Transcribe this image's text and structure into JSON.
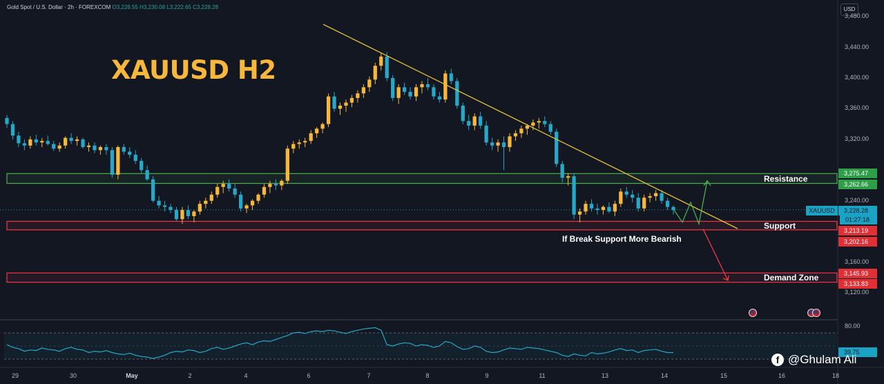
{
  "header": {
    "symbol": "Gold Spot / U.S. Dollar · 2h · FOREXCOM",
    "open": "O3,228.55",
    "high": "H3,230.08",
    "low": "L3,222.65",
    "close": "C3,228.28"
  },
  "title": "XAUUSD H2",
  "currency": "USD",
  "watermark": "@Ghulam Ali",
  "annotation": "If Break Support More Bearish",
  "zones": {
    "resistance": {
      "label": "Resistance",
      "top": 3275.47,
      "bottom": 3262.66,
      "top_label": "3,275.47",
      "bottom_label": "3,262.66",
      "color": "#4caf50"
    },
    "support": {
      "label": "Support",
      "top": 3213.19,
      "bottom": 3202.16,
      "top_label": "3,213.19",
      "bottom_label": "3,202.16",
      "color": "#f23645"
    },
    "demand": {
      "label": "Demand Zone",
      "top": 3145.93,
      "bottom": 3133.83,
      "top_label": "3,145.93",
      "bottom_label": "3,133.83",
      "color": "#f23645"
    }
  },
  "price_tag": {
    "symbol": "XAUUSD",
    "price": "3,228.28",
    "timer": "01:27:18"
  },
  "rsi": {
    "level_label": "80.00",
    "value_label": "39.75",
    "value": 39.75
  },
  "chart_data": {
    "type": "candlestick",
    "yaxis": {
      "min": 3100,
      "max": 3480,
      "ticks": [
        "3,120.00",
        "3,160.00",
        "3,200.00",
        "3,240.00",
        "3,280.00",
        "3,320.00",
        "3,360.00",
        "3,400.00",
        "3,440.00",
        "3,480.00"
      ]
    },
    "xaxis": {
      "ticks": [
        "29",
        "30",
        "May",
        "2",
        "4",
        "6",
        "7",
        "8",
        "9",
        "11",
        "13",
        "14",
        "15",
        "16",
        "18"
      ],
      "bold": [
        "May"
      ]
    },
    "colors": {
      "up": "#f6b73c",
      "down": "#26a8c9",
      "trendline": "#e6c23a",
      "rsi": "#26a8c9"
    },
    "candles": [
      [
        3348,
        3352,
        3335,
        3340
      ],
      [
        3340,
        3344,
        3320,
        3325
      ],
      [
        3325,
        3330,
        3310,
        3315
      ],
      [
        3315,
        3320,
        3306,
        3312
      ],
      [
        3312,
        3324,
        3308,
        3320
      ],
      [
        3320,
        3326,
        3312,
        3316
      ],
      [
        3316,
        3322,
        3310,
        3318
      ],
      [
        3318,
        3325,
        3312,
        3314
      ],
      [
        3314,
        3318,
        3305,
        3308
      ],
      [
        3308,
        3316,
        3304,
        3312
      ],
      [
        3312,
        3324,
        3308,
        3322
      ],
      [
        3322,
        3328,
        3314,
        3318
      ],
      [
        3318,
        3324,
        3312,
        3320
      ],
      [
        3320,
        3322,
        3308,
        3310
      ],
      [
        3310,
        3316,
        3304,
        3312
      ],
      [
        3312,
        3316,
        3302,
        3306
      ],
      [
        3306,
        3312,
        3300,
        3310
      ],
      [
        3310,
        3314,
        3300,
        3306
      ],
      [
        3306,
        3310,
        3270,
        3274
      ],
      [
        3274,
        3312,
        3268,
        3310
      ],
      [
        3310,
        3314,
        3300,
        3304
      ],
      [
        3304,
        3310,
        3296,
        3300
      ],
      [
        3300,
        3306,
        3288,
        3292
      ],
      [
        3292,
        3296,
        3276,
        3280
      ],
      [
        3280,
        3286,
        3266,
        3268
      ],
      [
        3268,
        3272,
        3238,
        3240
      ],
      [
        3240,
        3246,
        3230,
        3234
      ],
      [
        3234,
        3240,
        3226,
        3232
      ],
      [
        3232,
        3236,
        3224,
        3228
      ],
      [
        3228,
        3232,
        3214,
        3216
      ],
      [
        3216,
        3232,
        3210,
        3228
      ],
      [
        3228,
        3234,
        3216,
        3220
      ],
      [
        3220,
        3228,
        3212,
        3226
      ],
      [
        3226,
        3240,
        3222,
        3236
      ],
      [
        3236,
        3244,
        3230,
        3240
      ],
      [
        3240,
        3252,
        3236,
        3248
      ],
      [
        3248,
        3262,
        3244,
        3258
      ],
      [
        3258,
        3266,
        3250,
        3262
      ],
      [
        3262,
        3268,
        3252,
        3256
      ],
      [
        3256,
        3262,
        3244,
        3248
      ],
      [
        3248,
        3252,
        3226,
        3230
      ],
      [
        3230,
        3236,
        3224,
        3234
      ],
      [
        3234,
        3242,
        3228,
        3240
      ],
      [
        3240,
        3250,
        3236,
        3248
      ],
      [
        3248,
        3262,
        3244,
        3258
      ],
      [
        3258,
        3266,
        3250,
        3262
      ],
      [
        3262,
        3268,
        3254,
        3260
      ],
      [
        3260,
        3268,
        3254,
        3266
      ],
      [
        3266,
        3312,
        3262,
        3308
      ],
      [
        3308,
        3318,
        3302,
        3314
      ],
      [
        3314,
        3320,
        3308,
        3316
      ],
      [
        3316,
        3322,
        3310,
        3318
      ],
      [
        3318,
        3332,
        3314,
        3328
      ],
      [
        3328,
        3336,
        3322,
        3334
      ],
      [
        3334,
        3342,
        3328,
        3340
      ],
      [
        3340,
        3380,
        3336,
        3376
      ],
      [
        3376,
        3382,
        3356,
        3360
      ],
      [
        3360,
        3368,
        3352,
        3364
      ],
      [
        3364,
        3372,
        3356,
        3368
      ],
      [
        3368,
        3378,
        3362,
        3374
      ],
      [
        3374,
        3384,
        3368,
        3380
      ],
      [
        3380,
        3392,
        3374,
        3388
      ],
      [
        3388,
        3402,
        3382,
        3398
      ],
      [
        3398,
        3420,
        3392,
        3416
      ],
      [
        3416,
        3432,
        3410,
        3428
      ],
      [
        3428,
        3434,
        3396,
        3400
      ],
      [
        3400,
        3404,
        3370,
        3374
      ],
      [
        3374,
        3392,
        3366,
        3388
      ],
      [
        3388,
        3394,
        3378,
        3382
      ],
      [
        3382,
        3388,
        3372,
        3376
      ],
      [
        3376,
        3392,
        3370,
        3388
      ],
      [
        3388,
        3396,
        3380,
        3392
      ],
      [
        3392,
        3400,
        3384,
        3388
      ],
      [
        3388,
        3392,
        3372,
        3376
      ],
      [
        3376,
        3382,
        3368,
        3372
      ],
      [
        3372,
        3410,
        3368,
        3406
      ],
      [
        3406,
        3412,
        3392,
        3396
      ],
      [
        3396,
        3400,
        3360,
        3364
      ],
      [
        3364,
        3368,
        3340,
        3344
      ],
      [
        3344,
        3352,
        3332,
        3338
      ],
      [
        3338,
        3354,
        3332,
        3350
      ],
      [
        3350,
        3356,
        3334,
        3338
      ],
      [
        3338,
        3344,
        3312,
        3316
      ],
      [
        3316,
        3322,
        3306,
        3312
      ],
      [
        3312,
        3320,
        3304,
        3316
      ],
      [
        3316,
        3324,
        3280,
        3310
      ],
      [
        3310,
        3328,
        3304,
        3324
      ],
      [
        3324,
        3332,
        3318,
        3328
      ],
      [
        3328,
        3338,
        3322,
        3334
      ],
      [
        3334,
        3340,
        3326,
        3338
      ],
      [
        3338,
        3346,
        3332,
        3342
      ],
      [
        3342,
        3348,
        3334,
        3344
      ],
      [
        3344,
        3350,
        3336,
        3340
      ],
      [
        3340,
        3344,
        3326,
        3330
      ],
      [
        3330,
        3334,
        3284,
        3288
      ],
      [
        3288,
        3292,
        3264,
        3270
      ],
      [
        3270,
        3276,
        3260,
        3272
      ],
      [
        3272,
        3276,
        3216,
        3222
      ],
      [
        3222,
        3230,
        3212,
        3226
      ],
      [
        3226,
        3240,
        3222,
        3236
      ],
      [
        3236,
        3242,
        3226,
        3230
      ],
      [
        3230,
        3236,
        3222,
        3228
      ],
      [
        3228,
        3234,
        3222,
        3232
      ],
      [
        3232,
        3238,
        3224,
        3226
      ],
      [
        3226,
        3240,
        3220,
        3236
      ],
      [
        3236,
        3256,
        3232,
        3252
      ],
      [
        3252,
        3258,
        3244,
        3248
      ],
      [
        3248,
        3254,
        3238,
        3244
      ],
      [
        3244,
        3250,
        3226,
        3230
      ],
      [
        3230,
        3248,
        3226,
        3244
      ],
      [
        3244,
        3250,
        3238,
        3246
      ],
      [
        3246,
        3254,
        3240,
        3250
      ],
      [
        3250,
        3254,
        3236,
        3240
      ],
      [
        3240,
        3244,
        3228,
        3232
      ],
      [
        3232,
        3234,
        3222,
        3228
      ]
    ],
    "trendline": [
      [
        3470,
        0.0
      ],
      [
        3200,
        1.0
      ]
    ],
    "projection_up": [
      [
        3228,
        0
      ],
      [
        3212,
        1
      ],
      [
        3238,
        2
      ],
      [
        3210,
        3
      ],
      [
        3266,
        4
      ]
    ],
    "projection_down": [
      [
        3205,
        0
      ],
      [
        3140,
        1
      ]
    ],
    "rsi_values": [
      52,
      48,
      46,
      42,
      44,
      43,
      47,
      45,
      44,
      42,
      46,
      48,
      45,
      44,
      40,
      42,
      41,
      43,
      40,
      38,
      37,
      39,
      36,
      34,
      33,
      31,
      33,
      36,
      40,
      42,
      41,
      44,
      43,
      40,
      42,
      46,
      48,
      45,
      47,
      50,
      53,
      55,
      52,
      56,
      58,
      57,
      60,
      63,
      66,
      70,
      71,
      69,
      72,
      73,
      72,
      74,
      73,
      71,
      69,
      72,
      74,
      76,
      77,
      78,
      74,
      52,
      50,
      53,
      55,
      54,
      50,
      52,
      51,
      48,
      50,
      57,
      55,
      49,
      45,
      46,
      50,
      48,
      42,
      40,
      41,
      44,
      47,
      46,
      45,
      48,
      47,
      46,
      44,
      42,
      40,
      36,
      34,
      38,
      36,
      35,
      40,
      38,
      39,
      41,
      44,
      46,
      43,
      44,
      40,
      43,
      44,
      45,
      42,
      40,
      40
    ]
  }
}
